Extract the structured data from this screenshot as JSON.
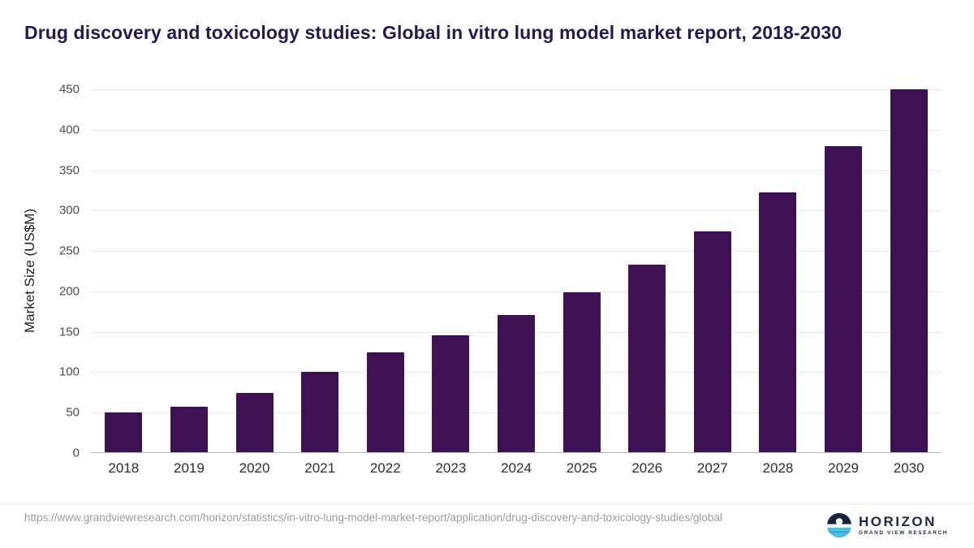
{
  "page": {
    "title": "Drug discovery and toxicology studies: Global in vitro lung model market report, 2018-2030"
  },
  "chart_data": {
    "type": "bar",
    "title": "Drug discovery and toxicology studies: Global in vitro lung model market report, 2018-2030",
    "categories": [
      "2018",
      "2019",
      "2020",
      "2021",
      "2022",
      "2023",
      "2024",
      "2025",
      "2026",
      "2027",
      "2028",
      "2029",
      "2030"
    ],
    "values": [
      49,
      56,
      73,
      99,
      124,
      145,
      170,
      198,
      232,
      273,
      321,
      379,
      449
    ],
    "xlabel": "",
    "ylabel": "Market Size (US$M)",
    "ylim": [
      0,
      450
    ],
    "ytick_interval": 50,
    "ytick_labels": [
      "0",
      "50",
      "100",
      "150",
      "200",
      "250",
      "300",
      "350",
      "400",
      "450"
    ],
    "grid": true,
    "legend": "none",
    "bar_color": "#3d1152"
  },
  "footer": {
    "source_url": "https://www.grandviewresearch.com/horizon/statistics/in-vitro-lung-model-market-report/application/drug-discovery-and-toxicology-studies/global",
    "logo_title": "HORIZON",
    "logo_subtitle": "GRAND VIEW RESEARCH"
  },
  "colors": {
    "bar": "#3d1152",
    "title_text": "#231a4f",
    "axis_text": "#4d4d4d",
    "xaxis_text": "#2e2e2e",
    "gridline": "#e8e8e8",
    "footer_text": "#9d9d9d",
    "logo_navy": "#16243d",
    "logo_cyan": "#45c2e8"
  }
}
